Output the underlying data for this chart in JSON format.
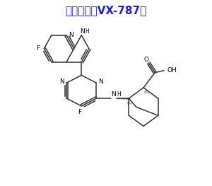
{
  "title": "匹莫地韦（VX-787）",
  "title_color": "#2020cc",
  "title_fontsize": 11,
  "bg_color": "#ffffff",
  "line_color": "#333333",
  "line_width": 1.1,
  "label_fontsize": 6.0,
  "fig_width": 3.0,
  "fig_height": 2.63,
  "dpi": 100,
  "xlim": [
    0,
    10
  ],
  "ylim": [
    0,
    8.5
  ]
}
